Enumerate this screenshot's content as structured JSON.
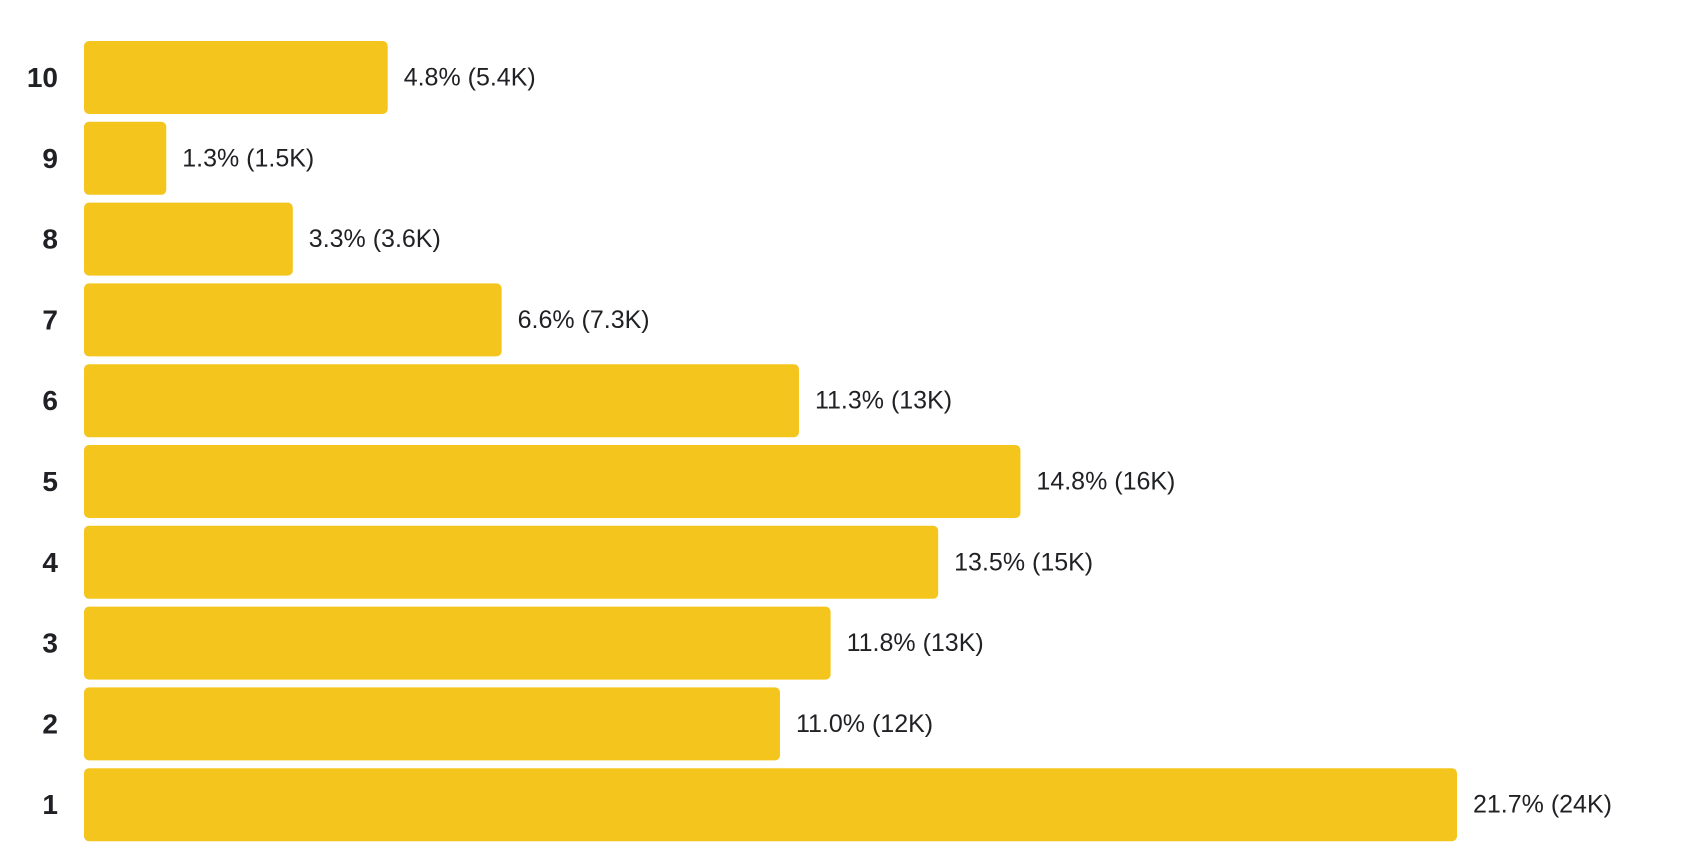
{
  "chart_data": {
    "type": "bar",
    "orientation": "horizontal",
    "categories": [
      "10",
      "9",
      "8",
      "7",
      "6",
      "5",
      "4",
      "3",
      "2",
      "1"
    ],
    "values": [
      4.8,
      1.3,
      3.3,
      6.6,
      11.3,
      14.8,
      13.5,
      11.8,
      11.0,
      21.7
    ],
    "value_labels": [
      "4.8% (5.4K)",
      "1.3% (1.5K)",
      "3.3% (3.6K)",
      "6.6% (7.3K)",
      "11.3% (13K)",
      "14.8% (16K)",
      "13.5% (15K)",
      "11.8% (13K)",
      "11.0% (12K)",
      "21.7% (24K)"
    ],
    "value_unit": "%",
    "xlim": [
      0,
      21.7
    ],
    "grid": false,
    "legend": "none",
    "title": "",
    "xlabel": "",
    "ylabel": "",
    "colors": {
      "bar": "#F4C51C",
      "text": "#202124"
    }
  }
}
